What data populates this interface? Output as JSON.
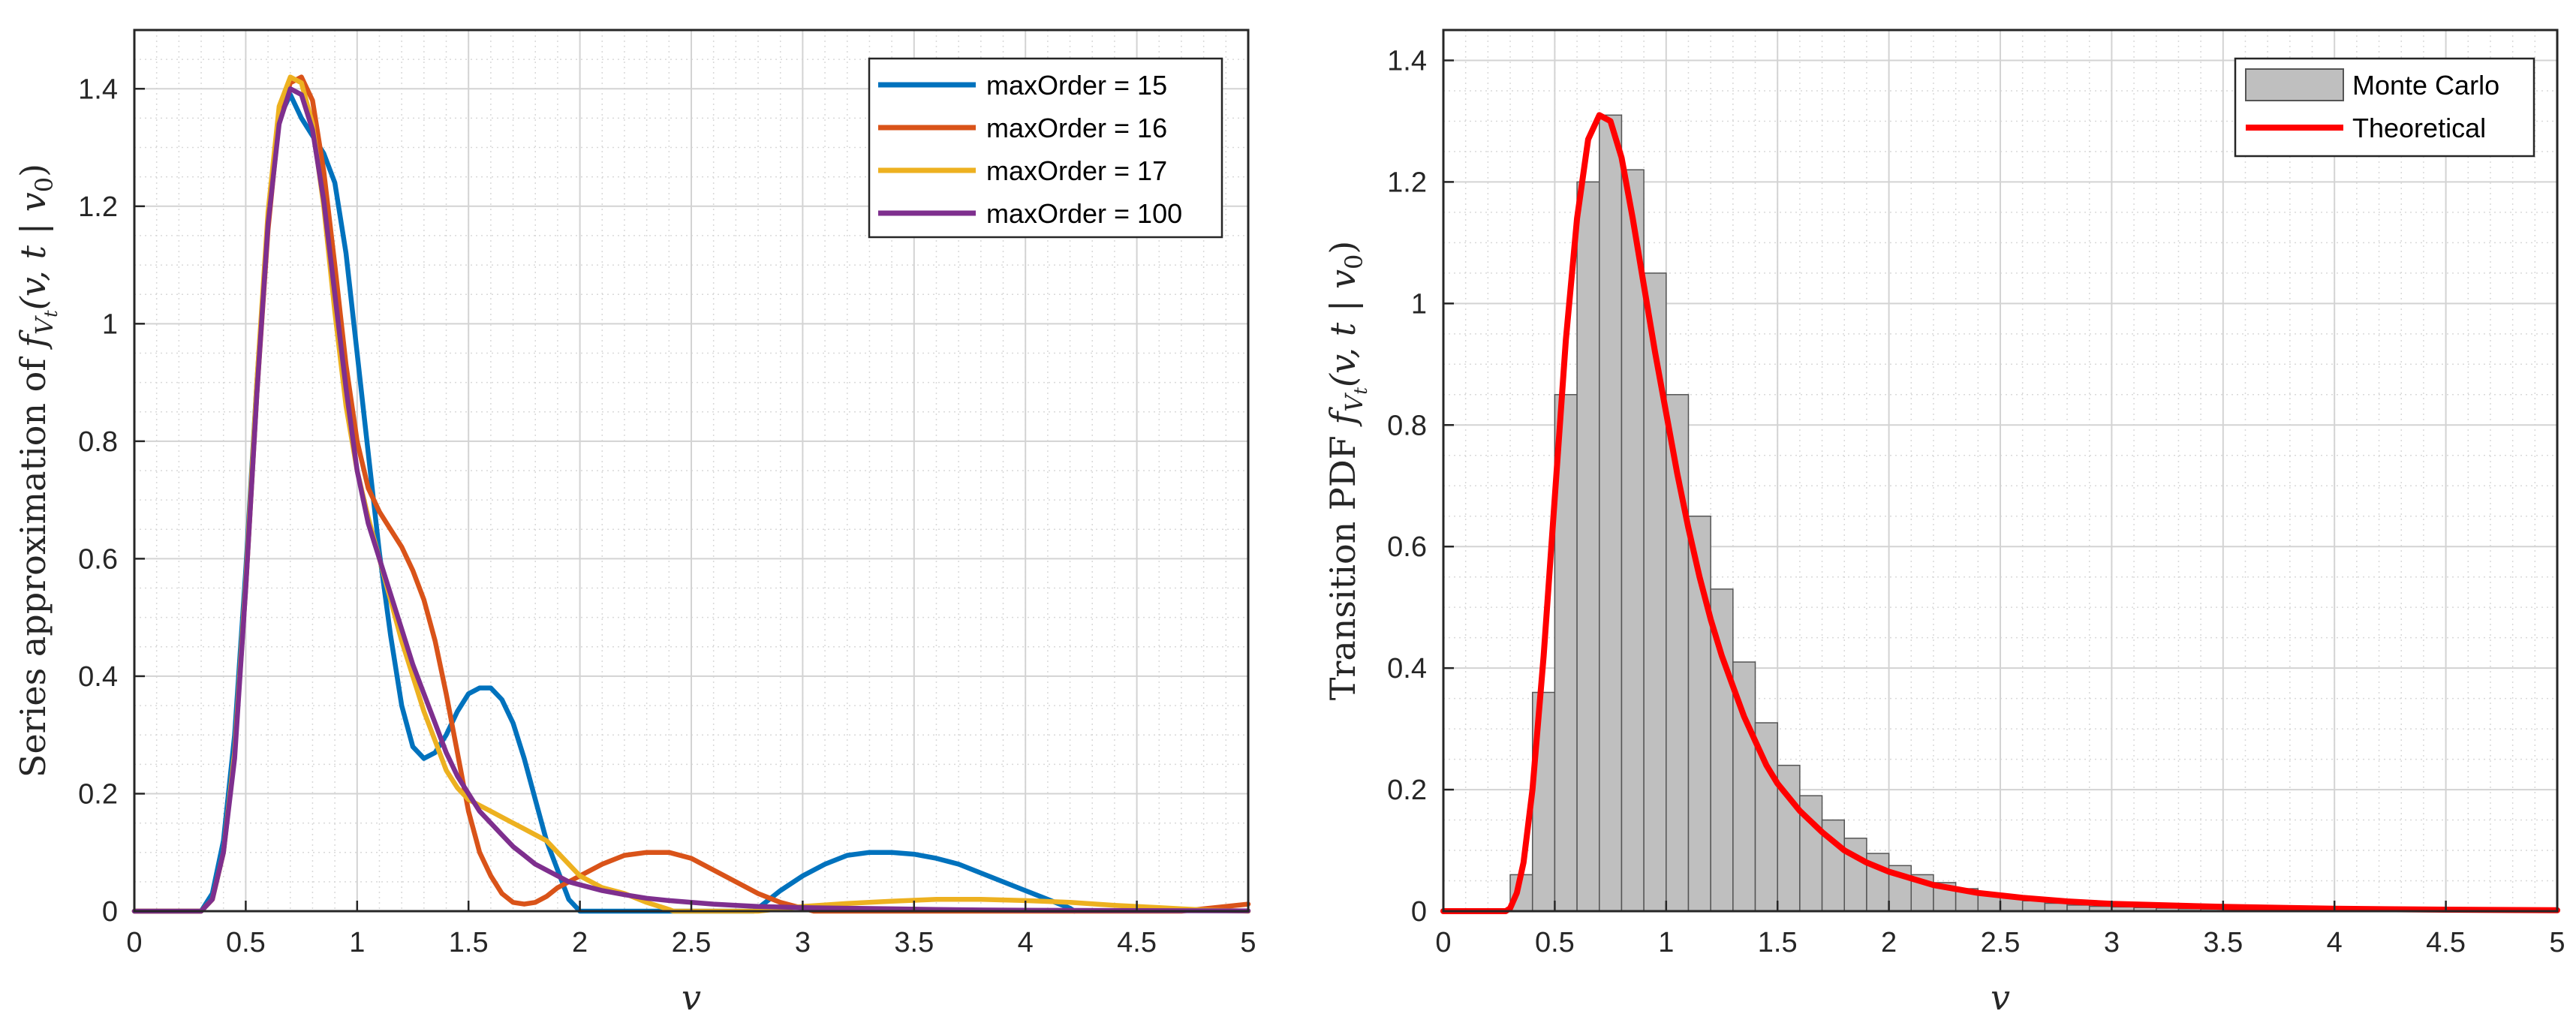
{
  "chart_data": [
    {
      "type": "line",
      "title": "",
      "xlabel": "v",
      "ylabel_prefix": "Series approximation of ",
      "ylabel_math": "f",
      "ylabel_sub": "V",
      "ylabel_subsub": "t",
      "ylabel_args": "(v, t | v",
      "ylabel_args_sub": "0",
      "ylabel_args_end": ")",
      "xlim": [
        0,
        5
      ],
      "ylim": [
        0,
        1.5
      ],
      "xticks": [
        0,
        0.5,
        1,
        1.5,
        2,
        2.5,
        3,
        3.5,
        4,
        4.5,
        5
      ],
      "xtick_labels": [
        "0",
        "0.5",
        "1",
        "1.5",
        "2",
        "2.5",
        "3",
        "3.5",
        "4",
        "4.5",
        "5"
      ],
      "yticks": [
        0,
        0.2,
        0.4,
        0.6,
        0.8,
        1,
        1.2,
        1.4
      ],
      "ytick_labels": [
        "0",
        "0.2",
        "0.4",
        "0.6",
        "0.8",
        "1",
        "1.2",
        "1.4"
      ],
      "grid": true,
      "minor_grid": true,
      "legend_position": "top-right",
      "series": [
        {
          "name": "maxOrder = 15",
          "color": "#0072BD",
          "x": [
            0,
            0.3,
            0.35,
            0.4,
            0.45,
            0.5,
            0.55,
            0.6,
            0.65,
            0.7,
            0.75,
            0.8,
            0.85,
            0.9,
            0.95,
            1.0,
            1.05,
            1.1,
            1.15,
            1.2,
            1.25,
            1.3,
            1.35,
            1.4,
            1.45,
            1.5,
            1.55,
            1.6,
            1.65,
            1.7,
            1.75,
            1.8,
            1.85,
            1.9,
            1.95,
            2.0,
            2.02,
            2.78,
            2.8,
            2.9,
            3.0,
            3.1,
            3.2,
            3.3,
            3.4,
            3.5,
            3.6,
            3.7,
            3.8,
            3.9,
            4.0,
            4.1,
            4.2,
            4.22
          ],
          "y": [
            0,
            0,
            0.03,
            0.12,
            0.3,
            0.58,
            0.9,
            1.17,
            1.35,
            1.39,
            1.35,
            1.32,
            1.29,
            1.24,
            1.12,
            0.95,
            0.78,
            0.61,
            0.47,
            0.35,
            0.28,
            0.26,
            0.27,
            0.3,
            0.34,
            0.37,
            0.38,
            0.38,
            0.36,
            0.32,
            0.26,
            0.19,
            0.12,
            0.07,
            0.02,
            0,
            0,
            0,
            0.005,
            0.035,
            0.06,
            0.08,
            0.095,
            0.1,
            0.1,
            0.097,
            0.09,
            0.08,
            0.065,
            0.05,
            0.035,
            0.02,
            0.005,
            0
          ]
        },
        {
          "name": "maxOrder = 16",
          "color": "#D95319",
          "x": [
            0,
            0.3,
            0.35,
            0.4,
            0.45,
            0.5,
            0.55,
            0.6,
            0.65,
            0.7,
            0.75,
            0.8,
            0.85,
            0.9,
            0.95,
            1.0,
            1.05,
            1.1,
            1.15,
            1.2,
            1.25,
            1.3,
            1.35,
            1.4,
            1.45,
            1.5,
            1.55,
            1.6,
            1.65,
            1.7,
            1.75,
            1.8,
            1.85,
            1.9,
            1.95,
            2.0,
            2.1,
            2.2,
            2.3,
            2.4,
            2.5,
            2.6,
            2.7,
            2.8,
            2.9,
            3.0,
            3.05,
            4.7,
            4.8,
            4.9,
            5.0
          ],
          "y": [
            0,
            0,
            0.02,
            0.1,
            0.27,
            0.55,
            0.88,
            1.16,
            1.35,
            1.41,
            1.42,
            1.38,
            1.26,
            1.1,
            0.93,
            0.8,
            0.72,
            0.68,
            0.65,
            0.62,
            0.58,
            0.53,
            0.46,
            0.37,
            0.27,
            0.17,
            0.1,
            0.06,
            0.03,
            0.015,
            0.012,
            0.015,
            0.025,
            0.04,
            0.05,
            0.06,
            0.08,
            0.095,
            0.1,
            0.1,
            0.09,
            0.07,
            0.05,
            0.03,
            0.015,
            0.005,
            0,
            0,
            0.004,
            0.008,
            0.012
          ]
        },
        {
          "name": "maxOrder = 17",
          "color": "#EDB120",
          "x": [
            0,
            0.3,
            0.35,
            0.4,
            0.45,
            0.5,
            0.55,
            0.6,
            0.65,
            0.7,
            0.75,
            0.8,
            0.85,
            0.9,
            0.95,
            1.0,
            1.05,
            1.1,
            1.15,
            1.2,
            1.25,
            1.3,
            1.35,
            1.4,
            1.45,
            1.5,
            1.55,
            1.6,
            1.65,
            1.7,
            1.75,
            1.8,
            1.85,
            1.9,
            1.95,
            2.0,
            2.1,
            2.2,
            2.3,
            2.4,
            2.42,
            2.8,
            2.9,
            3.0,
            3.2,
            3.4,
            3.6,
            3.8,
            4.0,
            4.2,
            4.4,
            4.5,
            4.6,
            4.7,
            4.8,
            4.9,
            5.0
          ],
          "y": [
            0,
            0,
            0.02,
            0.1,
            0.27,
            0.56,
            0.9,
            1.19,
            1.37,
            1.42,
            1.41,
            1.34,
            1.2,
            1.02,
            0.86,
            0.75,
            0.67,
            0.6,
            0.53,
            0.46,
            0.4,
            0.34,
            0.29,
            0.24,
            0.21,
            0.19,
            0.18,
            0.17,
            0.16,
            0.15,
            0.14,
            0.13,
            0.12,
            0.1,
            0.08,
            0.06,
            0.04,
            0.03,
            0.015,
            0.003,
            0,
            0,
            0.004,
            0.008,
            0.013,
            0.017,
            0.02,
            0.02,
            0.018,
            0.015,
            0.01,
            0.008,
            0.006,
            0.004,
            0.002,
            0.001,
            0
          ]
        },
        {
          "name": "maxOrder = 100",
          "color": "#7E2F8E",
          "x": [
            0,
            0.3,
            0.35,
            0.4,
            0.45,
            0.5,
            0.55,
            0.6,
            0.65,
            0.7,
            0.75,
            0.8,
            0.85,
            0.9,
            0.95,
            1.0,
            1.05,
            1.1,
            1.15,
            1.2,
            1.25,
            1.3,
            1.35,
            1.4,
            1.45,
            1.5,
            1.55,
            1.6,
            1.65,
            1.7,
            1.75,
            1.8,
            1.85,
            1.9,
            1.95,
            2.0,
            2.1,
            2.2,
            2.3,
            2.4,
            2.5,
            2.6,
            2.7,
            2.8,
            2.9,
            3.0,
            3.2,
            3.4,
            3.6,
            3.8,
            4.0,
            4.5,
            5.0
          ],
          "y": [
            0,
            0,
            0.02,
            0.1,
            0.26,
            0.55,
            0.88,
            1.17,
            1.34,
            1.4,
            1.39,
            1.33,
            1.21,
            1.05,
            0.89,
            0.75,
            0.66,
            0.6,
            0.54,
            0.48,
            0.42,
            0.37,
            0.32,
            0.27,
            0.23,
            0.2,
            0.17,
            0.15,
            0.13,
            0.11,
            0.095,
            0.08,
            0.07,
            0.06,
            0.05,
            0.045,
            0.035,
            0.028,
            0.022,
            0.018,
            0.015,
            0.012,
            0.01,
            0.008,
            0.007,
            0.006,
            0.005,
            0.004,
            0.003,
            0.002,
            0.0015,
            0.001,
            0.0005
          ]
        }
      ]
    },
    {
      "type": "bar",
      "title": "",
      "xlabel": "v",
      "ylabel_prefix": "Transition PDF ",
      "ylabel_math": "f",
      "ylabel_sub": "V",
      "ylabel_subsub": "t",
      "ylabel_args": "(v, t | v",
      "ylabel_args_sub": "0",
      "ylabel_args_end": ")",
      "xlim": [
        0,
        5
      ],
      "ylim": [
        0,
        1.45
      ],
      "xticks": [
        0,
        0.5,
        1,
        1.5,
        2,
        2.5,
        3,
        3.5,
        4,
        4.5,
        5
      ],
      "xtick_labels": [
        "0",
        "0.5",
        "1",
        "1.5",
        "2",
        "2.5",
        "3",
        "3.5",
        "4",
        "4.5",
        "5"
      ],
      "yticks": [
        0,
        0.2,
        0.4,
        0.6,
        0.8,
        1,
        1.2,
        1.4
      ],
      "ytick_labels": [
        "0",
        "0.2",
        "0.4",
        "0.6",
        "0.8",
        "1",
        "1.2",
        "1.4"
      ],
      "grid": true,
      "minor_grid": true,
      "legend_position": "top-right",
      "histogram": {
        "name": "Monte Carlo",
        "color": "#BFBFBF",
        "edge_color": "#555555",
        "bin_width": 0.1,
        "bin_start": 0.3,
        "values": [
          0.06,
          0.36,
          0.85,
          1.2,
          1.31,
          1.22,
          1.05,
          0.85,
          0.65,
          0.53,
          0.41,
          0.31,
          0.24,
          0.19,
          0.15,
          0.12,
          0.095,
          0.075,
          0.06,
          0.047,
          0.037,
          0.028,
          0.022,
          0.017,
          0.013,
          0.01,
          0.008,
          0.007,
          0.006,
          0.005,
          0.004,
          0.0035,
          0.003,
          0.0025,
          0.002,
          0.0018,
          0.0015,
          0.0012,
          0.001,
          0.0008,
          0.0006,
          0.0005,
          0.0004,
          0.0003,
          0.0002,
          0.0002,
          0.0001
        ]
      },
      "series": [
        {
          "name": "Theoretical",
          "color": "#FF0000",
          "x": [
            0,
            0.28,
            0.3,
            0.33,
            0.36,
            0.4,
            0.45,
            0.5,
            0.55,
            0.6,
            0.65,
            0.7,
            0.75,
            0.8,
            0.85,
            0.9,
            0.95,
            1.0,
            1.05,
            1.1,
            1.15,
            1.2,
            1.25,
            1.3,
            1.35,
            1.4,
            1.45,
            1.5,
            1.6,
            1.7,
            1.8,
            1.9,
            2.0,
            2.2,
            2.4,
            2.6,
            2.8,
            3.0,
            3.5,
            4.0,
            4.5,
            5.0
          ],
          "y": [
            0,
            0,
            0.005,
            0.03,
            0.08,
            0.2,
            0.42,
            0.68,
            0.94,
            1.14,
            1.27,
            1.31,
            1.3,
            1.24,
            1.14,
            1.03,
            0.92,
            0.82,
            0.72,
            0.63,
            0.55,
            0.48,
            0.42,
            0.37,
            0.32,
            0.28,
            0.24,
            0.21,
            0.165,
            0.13,
            0.1,
            0.08,
            0.065,
            0.043,
            0.03,
            0.022,
            0.016,
            0.012,
            0.007,
            0.004,
            0.0025,
            0.0015
          ]
        }
      ]
    }
  ]
}
